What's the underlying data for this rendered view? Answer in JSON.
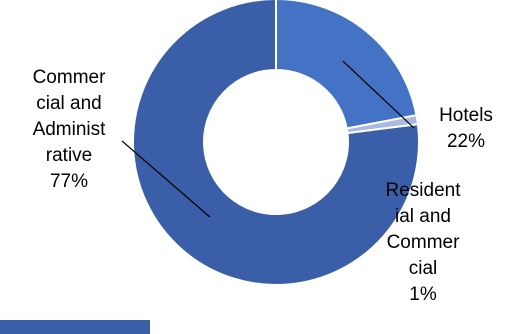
{
  "chart_data": {
    "type": "pie",
    "donut": true,
    "slices": [
      {
        "label_lines": [
          "Commer",
          "cial and",
          "Administ",
          "rative",
          "77%"
        ],
        "value": 77,
        "color": "#3a5fa8"
      },
      {
        "label_lines": [
          "Hotels",
          "22%"
        ],
        "value": 22,
        "color": "#4472c4"
      },
      {
        "label_lines": [
          "Resident",
          "ial and",
          "Commer",
          "cial",
          "1%"
        ],
        "value": 1,
        "color": "#aab9e0"
      }
    ],
    "legend": false
  },
  "decor": {
    "strip_color": "#3a5fa8"
  }
}
